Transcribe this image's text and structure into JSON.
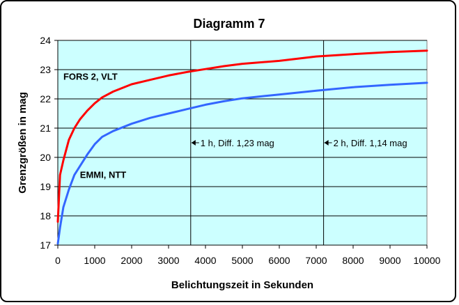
{
  "chart_data": {
    "type": "line",
    "title": "Diagramm 7",
    "xlabel": "Belichtungszeit in Sekunden",
    "ylabel": "Grenzgrößen in mag",
    "xlim": [
      0,
      10000
    ],
    "ylim": [
      17,
      24
    ],
    "x_ticks": [
      0,
      1000,
      2000,
      3000,
      4000,
      5000,
      6000,
      7000,
      8000,
      9000,
      10000
    ],
    "y_ticks": [
      17,
      18,
      19,
      20,
      21,
      22,
      23,
      24
    ],
    "grid": "horizontal",
    "background": "#ccffff",
    "series": [
      {
        "name": "FORS 2, VLT",
        "color": "#ff0000",
        "x": [
          0,
          60,
          150,
          300,
          450,
          600,
          800,
          1000,
          1200,
          1500,
          2000,
          2500,
          3000,
          3500,
          4000,
          4500,
          5000,
          6000,
          7000,
          8000,
          9000,
          10000
        ],
        "y": [
          17.8,
          19.4,
          19.9,
          20.6,
          21.0,
          21.3,
          21.6,
          21.85,
          22.05,
          22.25,
          22.5,
          22.65,
          22.8,
          22.92,
          23.02,
          23.12,
          23.2,
          23.3,
          23.45,
          23.53,
          23.6,
          23.65
        ]
      },
      {
        "name": "EMMI, NTT",
        "color": "#3366ff",
        "x": [
          0,
          60,
          150,
          300,
          450,
          600,
          800,
          1000,
          1200,
          1500,
          2000,
          2500,
          3000,
          3500,
          4000,
          4500,
          5000,
          6000,
          7000,
          8000,
          9000,
          10000
        ],
        "y": [
          17.05,
          17.6,
          18.3,
          18.9,
          19.4,
          19.7,
          20.1,
          20.45,
          20.7,
          20.9,
          21.15,
          21.35,
          21.5,
          21.65,
          21.8,
          21.92,
          22.02,
          22.15,
          22.28,
          22.4,
          22.48,
          22.55
        ]
      }
    ],
    "markers": [
      {
        "x": 3600,
        "label": "1 h, Diff. 1,23 mag",
        "label_y": 20.5
      },
      {
        "x": 7200,
        "label": "2 h, Diff. 1,14 mag",
        "label_y": 20.5
      }
    ],
    "series_labels": [
      {
        "text": "FORS 2, VLT",
        "x": 150,
        "y": 22.65
      },
      {
        "text": "EMMI, NTT",
        "x": 600,
        "y": 19.3
      }
    ]
  }
}
